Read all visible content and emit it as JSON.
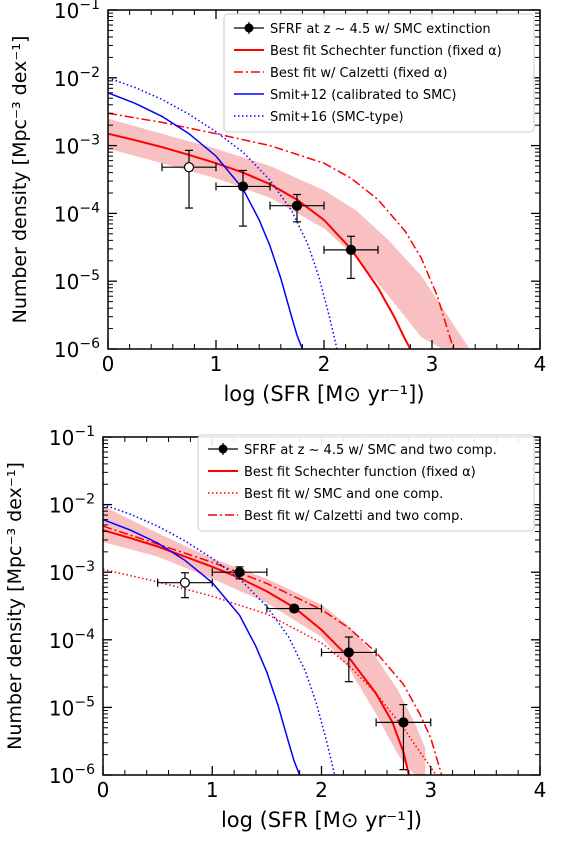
{
  "chart_data": [
    {
      "type": "line",
      "xlabel": "log (SFR [M⊙ yr⁻¹])",
      "ylabel": "Number density [Mpc⁻³ dex⁻¹]",
      "xlim": [
        0,
        4
      ],
      "ylim": [
        1e-06,
        0.1
      ],
      "yscale": "log",
      "xticks": [
        "0",
        "1",
        "2",
        "3",
        "4"
      ],
      "yticks": [
        "10⁻¹",
        "10⁻²",
        "10⁻³",
        "10⁻⁴",
        "10⁻⁵",
        "10⁻⁶"
      ],
      "legend_position": "top-right",
      "band": {
        "color": "#f8c0c0",
        "x": [
          0,
          0.5,
          1.0,
          1.5,
          2.0,
          2.3,
          2.6,
          2.9,
          3.1,
          3.3,
          3.35
        ],
        "lower": [
          0.0009,
          0.00055,
          0.00033,
          0.00017,
          6e-05,
          2.2e-05,
          6e-06,
          1.5e-06,
          1e-06,
          1e-06,
          1e-06
        ],
        "upper": [
          0.0025,
          0.0015,
          0.0009,
          0.0005,
          0.00022,
          0.00011,
          4e-05,
          1.2e-05,
          4e-06,
          1.3e-06,
          1e-06
        ]
      },
      "series": [
        {
          "name": "SFRF at z ~ 4.5 w/ SMC extinction",
          "kind": "points",
          "color": "#000000",
          "points": [
            {
              "x": 0.75,
              "y": 0.00048,
              "xerr": 0.25,
              "ylo": 0.00012,
              "yhi": 0.00085,
              "open": true
            },
            {
              "x": 1.25,
              "y": 0.00025,
              "xerr": 0.25,
              "ylo": 6.5e-05,
              "yhi": 0.00043,
              "open": false
            },
            {
              "x": 1.75,
              "y": 0.00013,
              "xerr": 0.25,
              "ylo": 7.5e-05,
              "yhi": 0.00019,
              "open": false
            },
            {
              "x": 2.25,
              "y": 2.9e-05,
              "xerr": 0.25,
              "ylo": 1.1e-05,
              "yhi": 4.6e-05,
              "open": false
            }
          ]
        },
        {
          "name": "Best fit Schechter function (fixed α)",
          "kind": "line",
          "color": "#ff0000",
          "dash": "solid",
          "x": [
            0,
            0.25,
            0.5,
            0.75,
            1.0,
            1.25,
            1.5,
            1.75,
            2.0,
            2.25,
            2.5,
            2.65,
            2.75,
            2.8
          ],
          "y": [
            0.0015,
            0.0012,
            0.00095,
            0.00073,
            0.00055,
            0.0004,
            0.00027,
            0.00016,
            8e-05,
            3e-05,
            8e-06,
            3e-06,
            1.4e-06,
            1e-06
          ]
        },
        {
          "name": "Best fit w/ Calzetti (fixed α)",
          "kind": "line",
          "color": "#ff0000",
          "dash": "dashdot",
          "x": [
            0,
            0.5,
            1.0,
            1.5,
            2.0,
            2.25,
            2.5,
            2.75,
            2.9,
            3.05,
            3.15,
            3.2
          ],
          "y": [
            0.003,
            0.0022,
            0.0015,
            0.001,
            0.00055,
            0.00033,
            0.00016,
            5.5e-05,
            2.2e-05,
            6e-06,
            1.8e-06,
            1e-06
          ]
        },
        {
          "name": "Smit+12  (calibrated to SMC)",
          "kind": "line",
          "color": "#0000ff",
          "dash": "solid",
          "x": [
            0,
            0.25,
            0.5,
            0.75,
            1.0,
            1.25,
            1.4,
            1.5,
            1.6,
            1.7,
            1.75,
            1.8
          ],
          "y": [
            0.006,
            0.0042,
            0.0027,
            0.0015,
            0.0007,
            0.00023,
            8e-05,
            3.3e-05,
            1.1e-05,
            3e-06,
            1.6e-06,
            1e-06
          ]
        },
        {
          "name": "Smit+16 (SMC-type)",
          "kind": "line",
          "color": "#0000ff",
          "dash": "dotted",
          "x": [
            0,
            0.25,
            0.5,
            0.75,
            1.0,
            1.25,
            1.5,
            1.7,
            1.85,
            1.95,
            2.05,
            2.12
          ],
          "y": [
            0.01,
            0.0072,
            0.0048,
            0.0029,
            0.0016,
            0.0008,
            0.00031,
            0.00011,
            3.5e-05,
            1.2e-05,
            3e-06,
            1e-06
          ]
        }
      ]
    },
    {
      "type": "line",
      "xlabel": "log (SFR [M⊙ yr⁻¹])",
      "ylabel": "Number density [Mpc⁻³ dex⁻¹]",
      "xlim": [
        0,
        4
      ],
      "ylim": [
        1e-06,
        0.1
      ],
      "yscale": "log",
      "xticks": [
        "0",
        "1",
        "2",
        "3",
        "4"
      ],
      "yticks": [
        "10⁻¹",
        "10⁻²",
        "10⁻³",
        "10⁻⁴",
        "10⁻⁵",
        "10⁻⁶"
      ],
      "legend_position": "top-right",
      "band": {
        "color": "#f8c0c0",
        "x": [
          0,
          0.5,
          1.0,
          1.5,
          2.0,
          2.25,
          2.5,
          2.7,
          2.85,
          2.95
        ],
        "lower": [
          0.0028,
          0.0017,
          0.0008,
          0.00035,
          0.00011,
          3.8e-05,
          8e-06,
          2e-06,
          1e-06,
          1e-06
        ],
        "upper": [
          0.0095,
          0.0038,
          0.0016,
          0.0008,
          0.00033,
          0.00016,
          5.5e-05,
          1.8e-05,
          6e-06,
          2.5e-06
        ]
      },
      "series": [
        {
          "name": "SFRF at z ~ 4.5 w/ SMC and two comp.",
          "kind": "points",
          "color": "#000000",
          "points": [
            {
              "x": 0.75,
              "y": 0.0007,
              "xerr": 0.25,
              "ylo": 0.00042,
              "yhi": 0.00098,
              "open": true
            },
            {
              "x": 1.25,
              "y": 0.001,
              "xerr": 0.25,
              "ylo": 0.0008,
              "yhi": 0.0012,
              "open": false
            },
            {
              "x": 1.75,
              "y": 0.00029,
              "xerr": 0.25,
              "ylo": 0.00026,
              "yhi": 0.00032,
              "open": false
            },
            {
              "x": 2.25,
              "y": 6.5e-05,
              "xerr": 0.25,
              "ylo": 2.4e-05,
              "yhi": 0.00011,
              "open": false
            },
            {
              "x": 2.75,
              "y": 6e-06,
              "xerr": 0.25,
              "ylo": 1.2e-06,
              "yhi": 1.1e-05,
              "open": false
            }
          ]
        },
        {
          "name": "Best fit Schechter function (fixed α)",
          "kind": "line",
          "color": "#ff0000",
          "dash": "solid",
          "x": [
            0,
            0.25,
            0.5,
            0.75,
            1.0,
            1.25,
            1.5,
            1.75,
            2.0,
            2.25,
            2.5,
            2.65,
            2.75,
            2.8
          ],
          "y": [
            0.0042,
            0.0032,
            0.0024,
            0.0017,
            0.0012,
            0.00082,
            0.00052,
            0.0003,
            0.00014,
            5.5e-05,
            1.6e-05,
            6e-06,
            2.2e-06,
            1e-06
          ]
        },
        {
          "name": "Best fit w/ SMC and one comp.",
          "kind": "line",
          "color": "#ff0000",
          "dash": "dotted",
          "x": [
            0,
            0.5,
            1.0,
            1.5,
            2.0,
            2.25,
            2.5,
            2.75,
            2.9,
            3.0,
            3.05
          ],
          "y": [
            0.0011,
            0.00072,
            0.00044,
            0.00024,
            9e-05,
            4.2e-05,
            1.6e-05,
            5e-06,
            2.2e-06,
            1.3e-06,
            1e-06
          ]
        },
        {
          "name": "Best fit w/ Calzetti and two comp.",
          "kind": "line",
          "color": "#ff0000",
          "dash": "dashdot",
          "x": [
            0,
            0.5,
            1.0,
            1.5,
            2.0,
            2.25,
            2.5,
            2.75,
            2.9,
            3.0,
            3.1
          ],
          "y": [
            0.0048,
            0.0026,
            0.0014,
            0.00068,
            0.00028,
            0.00015,
            6.5e-05,
            2.2e-05,
            8e-06,
            3.5e-06,
            1e-06
          ]
        },
        {
          "name": "",
          "kind": "line",
          "color": "#0000ff",
          "dash": "solid",
          "x": [
            0,
            0.25,
            0.5,
            0.75,
            1.0,
            1.25,
            1.4,
            1.5,
            1.6,
            1.7,
            1.75,
            1.8
          ],
          "y": [
            0.006,
            0.0042,
            0.0027,
            0.0015,
            0.0007,
            0.00023,
            8e-05,
            3.3e-05,
            1.1e-05,
            3e-06,
            1.6e-06,
            1e-06
          ]
        },
        {
          "name": "",
          "kind": "line",
          "color": "#0000ff",
          "dash": "dotted",
          "x": [
            0,
            0.25,
            0.5,
            0.75,
            1.0,
            1.25,
            1.5,
            1.7,
            1.85,
            1.95,
            2.05,
            2.12
          ],
          "y": [
            0.01,
            0.0072,
            0.0048,
            0.0029,
            0.0016,
            0.0008,
            0.00031,
            0.00011,
            3.5e-05,
            1.2e-05,
            3e-06,
            1e-06
          ]
        }
      ]
    }
  ]
}
